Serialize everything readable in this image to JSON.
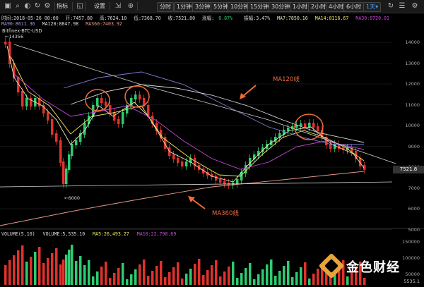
{
  "toolbar": {
    "indicator_label": "指标",
    "settings_label": "设置",
    "periods": [
      "分时",
      "1分钟",
      "3分钟",
      "5分钟",
      "10分钟",
      "15分钟",
      "30分钟",
      "1小时",
      "2小时",
      "4小时",
      "6小时"
    ],
    "period_selected": "1天",
    "period_selected_arrow": "▾"
  },
  "info_bar": {
    "time": "时间:2018-05-26 08:00",
    "open": "开:7457.80",
    "high": "高:7624.10",
    "low": "低:7368.70",
    "close": "收:7521.80",
    "change": "涨幅:",
    "change_value": "0.87%",
    "amplitude": "振幅:3.47%",
    "ma7": "MA7:7850.16",
    "ma14": "MA14:8116.67",
    "ma30": "MA30:8720.01"
  },
  "ma_bar": {
    "ma90": "MA90:8611.36",
    "ma120": "MA120:8847.98",
    "ma360": "MA360:7403.92"
  },
  "pair": "Bitfinex-BTC-USD",
  "volume_bar": {
    "label": "VOLUME(5,10)",
    "volume": "VOLUME:5,535.10",
    "ma5": "MA5:26,493.27",
    "ma10": "MA10:22,798.69"
  },
  "y_axis": [
    "14000",
    "13000",
    "12000",
    "11000",
    "10000",
    "9000",
    "8000",
    "7000",
    "6000",
    "5000"
  ],
  "y_axis_volume": [
    "150000",
    "100000",
    "50000"
  ],
  "current_price": "7521.8",
  "current_volume": "5535.1",
  "chart_labels": {
    "high_marker": "←14356",
    "low_marker": "←6000",
    "ma120_note": "MA120线",
    "ma360_note": "MA360线"
  },
  "logo_text": "金色财经",
  "colors": {
    "up": "#2ecc71",
    "down": "#e0322c",
    "annotation": "#f26b3a",
    "ma7": "#e8e8c0",
    "ma14": "#f2e85a",
    "ma30": "#c946d8",
    "ma90": "#7d7dd8",
    "ma120": "#dcdcdc",
    "ma360": "#e89a8a",
    "change_value": "#2ecc71"
  },
  "icons": [
    "search-icon",
    "refresh-icon",
    "more-icon"
  ]
}
